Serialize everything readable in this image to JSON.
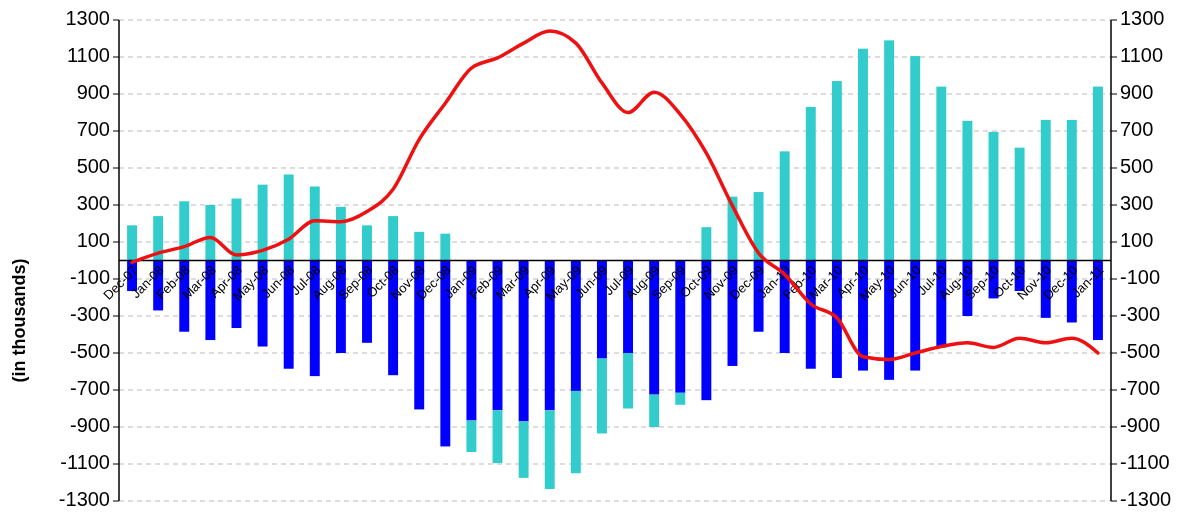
{
  "chart_data": {
    "type": "bar",
    "ylabel": "(in thousands)",
    "categories": [
      "Dec-07",
      "Jan-08",
      "Feb-08",
      "Mar-08",
      "Apr-08",
      "May-08",
      "Jun-08",
      "Jul-08",
      "Aug-08",
      "Sep-08",
      "Oct-08",
      "Nov-08",
      "Dec-08",
      "Jan-09",
      "Feb-09",
      "Mar-09",
      "Apr-09",
      "May-09",
      "Jun-09",
      "Jul-09",
      "Aug-09",
      "Sep-09",
      "Oct-09",
      "Nov-09",
      "Dec-09",
      "Jan-10",
      "Feb-10",
      "Mar-10",
      "Apr-10",
      "May-10",
      "Jun-10",
      "Jul-10",
      "Aug-10",
      "Sep-10",
      "Oct-10",
      "Nov-10",
      "Dec-10",
      "Jan-11"
    ],
    "series": [
      {
        "color": "#0000ff",
        "values": [
          -165,
          -270,
          -385,
          -430,
          -365,
          -465,
          -585,
          -625,
          -500,
          -445,
          -620,
          -805,
          -1005,
          -865,
          -810,
          -870,
          -810,
          -705,
          -530,
          -500,
          -725,
          -715,
          -755,
          -570,
          -385,
          -500,
          -585,
          -635,
          -595,
          -645,
          -595,
          -470,
          -300,
          -205,
          -165,
          -310,
          -335,
          -430
        ]
      },
      {
        "color": "#33cccc",
        "values": [
          190,
          240,
          320,
          300,
          335,
          410,
          465,
          400,
          290,
          190,
          240,
          155,
          145,
          -170,
          -285,
          -305,
          -425,
          -445,
          -405,
          -300,
          -175,
          -65,
          180,
          345,
          370,
          590,
          830,
          970,
          1145,
          1190,
          1105,
          940,
          755,
          695,
          610,
          760,
          760,
          940
        ]
      },
      {
        "type": "line",
        "color": "#ee1111",
        "values": [
          -10,
          40,
          75,
          125,
          30,
          55,
          115,
          215,
          210,
          265,
          385,
          655,
          850,
          1040,
          1095,
          1175,
          1240,
          1175,
          960,
          800,
          910,
          790,
          580,
          295,
          40,
          -75,
          -235,
          -310,
          -520,
          -535,
          -500,
          -465,
          -445,
          -470,
          -420,
          -445,
          -420,
          -500
        ]
      }
    ],
    "ylim": [
      -1300,
      1300
    ],
    "yticks": [
      -1300,
      -1100,
      -900,
      -700,
      -500,
      -300,
      -100,
      100,
      300,
      500,
      700,
      900,
      1100,
      1300
    ],
    "y2lim": [
      -1300,
      1300
    ],
    "y2ticks": [
      -1300,
      -1100,
      -900,
      -700,
      -500,
      -300,
      -100,
      100,
      300,
      500,
      700,
      900,
      1100,
      1300
    ],
    "grid": "y",
    "line_style": "solid",
    "stacked": true
  }
}
